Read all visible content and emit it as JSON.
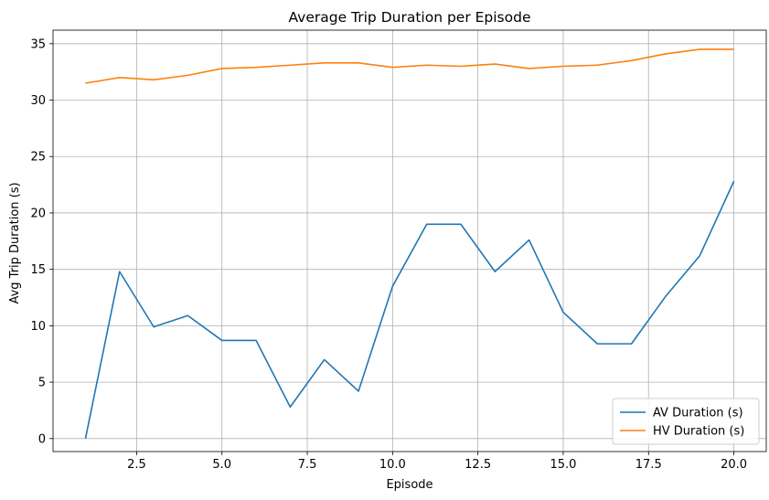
{
  "chart_data": {
    "type": "line",
    "title": "Average Trip Duration per Episode",
    "xlabel": "Episode",
    "ylabel": "Avg Trip Duration (s)",
    "xlim": [
      0.05,
      20.95
    ],
    "ylim": [
      -1.15,
      36.2
    ],
    "xticks": [
      2.5,
      5.0,
      7.5,
      10.0,
      12.5,
      15.0,
      17.5,
      20.0
    ],
    "xtick_labels": [
      "2.5",
      "5.0",
      "7.5",
      "10.0",
      "12.5",
      "15.0",
      "17.5",
      "20.0"
    ],
    "yticks": [
      0,
      5,
      10,
      15,
      20,
      25,
      30,
      35
    ],
    "ytick_labels": [
      "0",
      "5",
      "10",
      "15",
      "20",
      "25",
      "30",
      "35"
    ],
    "grid": true,
    "legend_position": "bottom-right",
    "x": [
      1,
      2,
      3,
      4,
      5,
      6,
      7,
      8,
      9,
      10,
      11,
      12,
      13,
      14,
      15,
      16,
      17,
      18,
      19,
      20
    ],
    "series": [
      {
        "name": "AV Duration (s)",
        "color": "#1f77b4",
        "values": [
          0.0,
          14.8,
          9.9,
          10.9,
          8.7,
          8.7,
          2.8,
          7.0,
          4.2,
          13.5,
          19.0,
          19.0,
          14.8,
          17.6,
          11.2,
          8.4,
          8.4,
          12.6,
          16.2,
          22.8
        ]
      },
      {
        "name": "HV Duration (s)",
        "color": "#ff7f0e",
        "values": [
          31.5,
          32.0,
          31.8,
          32.2,
          32.8,
          32.9,
          33.1,
          33.3,
          33.3,
          32.9,
          33.1,
          33.0,
          33.2,
          32.8,
          33.0,
          33.1,
          33.5,
          34.1,
          34.5,
          34.5
        ]
      }
    ]
  }
}
